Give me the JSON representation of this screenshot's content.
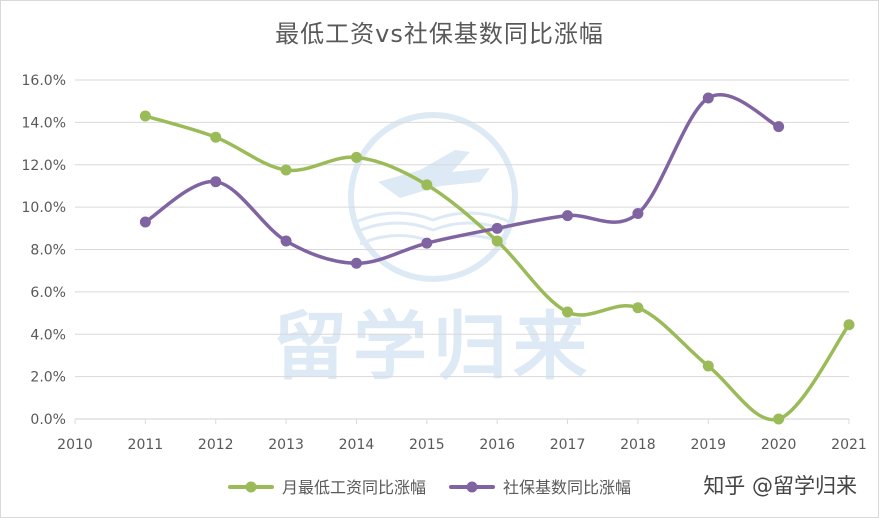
{
  "title": "最低工资vs社保基数同比涨幅",
  "credit": "知乎 @留学归来",
  "watermark": {
    "text": "留学归来"
  },
  "colors": {
    "series1": "#9bbb59",
    "series2": "#8064a2",
    "grid": "#d9d9d9",
    "text": "#595959"
  },
  "chart_data": {
    "type": "line",
    "title": "最低工资vs社保基数同比涨幅",
    "xlim": [
      2010,
      2021
    ],
    "ylim": [
      0,
      16
    ],
    "x_ticks": [
      "2010",
      "2011",
      "2012",
      "2013",
      "2014",
      "2015",
      "2016",
      "2017",
      "2018",
      "2019",
      "2020",
      "2021"
    ],
    "y_ticks": [
      "0.0%",
      "2.0%",
      "4.0%",
      "6.0%",
      "8.0%",
      "10.0%",
      "12.0%",
      "14.0%",
      "16.0%"
    ],
    "grid": true,
    "smooth": true,
    "legend_position": "bottom",
    "series": [
      {
        "name": "月最低工资同比涨幅",
        "color": "#9bbb59",
        "x": [
          2011,
          2012,
          2013,
          2014,
          2015,
          2016,
          2017,
          2018,
          2019,
          2020,
          2021
        ],
        "y": [
          14.3,
          13.3,
          11.75,
          12.35,
          11.05,
          8.4,
          5.05,
          5.25,
          2.5,
          0.0,
          4.45
        ]
      },
      {
        "name": "社保基数同比涨幅",
        "color": "#8064a2",
        "x": [
          2011,
          2012,
          2013,
          2014,
          2015,
          2016,
          2017,
          2018,
          2019,
          2020
        ],
        "y": [
          9.3,
          11.2,
          8.4,
          7.35,
          8.3,
          9.0,
          9.6,
          9.7,
          15.15,
          13.8
        ]
      }
    ]
  }
}
